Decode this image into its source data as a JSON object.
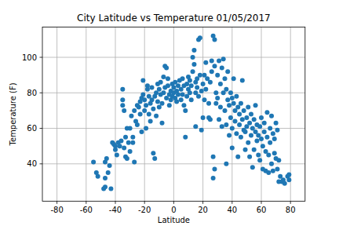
{
  "chart_data": {
    "type": "scatter",
    "title": "City Latitude vs Temperature 01/05/2017",
    "x_label": "Latitude",
    "y_label": "Temperature (F)",
    "color": "#1f77b4",
    "marker": "circle",
    "grid": true,
    "xlim": [
      -90,
      90
    ],
    "ylim": [
      19,
      117
    ],
    "xticks": [
      -80,
      -60,
      -40,
      -20,
      0,
      20,
      40,
      60,
      80
    ],
    "yticks": [
      40,
      60,
      80,
      100
    ],
    "x": [
      -55,
      -53,
      -52,
      -48,
      -47,
      -47,
      -47,
      -46,
      -45,
      -44,
      -43,
      -42,
      -41,
      -40,
      -40,
      -39,
      -38,
      -37,
      -36,
      -35,
      -35,
      -35,
      -34,
      -34,
      -33,
      -33,
      -32,
      -32,
      -31,
      -30,
      -30,
      -29,
      -28,
      -28,
      -27,
      -27,
      -26,
      -25,
      -25,
      -24,
      -23,
      -23,
      -22,
      -22,
      -21,
      -21,
      -20,
      -20,
      -19,
      -19,
      -18,
      -18,
      -17,
      -17,
      -16,
      -16,
      -15,
      -15,
      -14,
      -14,
      -13,
      -13,
      -12,
      -12,
      -11,
      -11,
      -10,
      -10,
      -9,
      -9,
      -8,
      -8,
      -7,
      -7,
      -6,
      -6,
      -5,
      -5,
      -4,
      -4,
      -3,
      -3,
      -2,
      -2,
      -1,
      -1,
      0,
      0,
      1,
      1,
      2,
      2,
      3,
      3,
      4,
      5,
      5,
      6,
      6,
      7,
      7,
      8,
      8,
      9,
      9,
      10,
      10,
      11,
      11,
      12,
      12,
      13,
      13,
      14,
      14,
      15,
      15,
      15,
      16,
      16,
      17,
      17,
      18,
      18,
      19,
      19,
      20,
      20,
      21,
      21,
      22,
      22,
      23,
      24,
      24,
      25,
      25,
      26,
      26,
      27,
      27,
      27,
      28,
      28,
      28,
      29,
      29,
      30,
      30,
      31,
      31,
      32,
      32,
      33,
      33,
      34,
      34,
      35,
      35,
      36,
      36,
      36,
      37,
      37,
      38,
      38,
      39,
      39,
      40,
      40,
      40,
      41,
      41,
      42,
      42,
      43,
      43,
      44,
      44,
      45,
      45,
      46,
      46,
      47,
      47,
      48,
      48,
      49,
      49,
      50,
      50,
      51,
      51,
      52,
      52,
      53,
      53,
      54,
      54,
      55,
      55,
      56,
      56,
      57,
      57,
      58,
      58,
      59,
      59,
      60,
      60,
      61,
      61,
      62,
      62,
      63,
      63,
      64,
      64,
      65,
      65,
      66,
      66,
      67,
      67,
      68,
      68,
      69,
      69,
      70,
      70,
      71,
      71,
      72,
      72,
      73,
      74,
      75,
      76,
      78,
      79,
      79
    ],
    "values": [
      41,
      35,
      33,
      26,
      27,
      32,
      41,
      43,
      35,
      39,
      26,
      52,
      51,
      48,
      50,
      45,
      52,
      50,
      53,
      82,
      76,
      73,
      70,
      49,
      55,
      44,
      60,
      43,
      52,
      60,
      47,
      67,
      55,
      52,
      70,
      41,
      64,
      62,
      73,
      72,
      75,
      68,
      77,
      58,
      87,
      79,
      76,
      70,
      60,
      73,
      84,
      82,
      78,
      68,
      74,
      64,
      83,
      76,
      71,
      46,
      43,
      78,
      80,
      67,
      85,
      75,
      82,
      72,
      79,
      86,
      74,
      63,
      89,
      80,
      95,
      83,
      94,
      77,
      84,
      88,
      79,
      73,
      81,
      76,
      85,
      78,
      80,
      83,
      77,
      86,
      81,
      75,
      79,
      84,
      87,
      82,
      76,
      88,
      79,
      73,
      84,
      70,
      55,
      85,
      78,
      82,
      89,
      87,
      80,
      84,
      76,
      100,
      92,
      104,
      96,
      86,
      80,
      61,
      88,
      83,
      110,
      78,
      111,
      90,
      81,
      59,
      85,
      66,
      90,
      76,
      82,
      97,
      88,
      74,
      66,
      86,
      65,
      92,
      98,
      112,
      44,
      32,
      95,
      37,
      110,
      80,
      74,
      90,
      77,
      98,
      65,
      85,
      72,
      94,
      61,
      99,
      80,
      88,
      70,
      82,
      62,
      40,
      76,
      92,
      73,
      56,
      80,
      66,
      77,
      60,
      49,
      74,
      88,
      70,
      64,
      78,
      57,
      72,
      44,
      68,
      62,
      74,
      55,
      65,
      87,
      70,
      59,
      58,
      48,
      66,
      61,
      72,
      52,
      63,
      44,
      68,
      56,
      60,
      38,
      65,
      48,
      58,
      73,
      62,
      53,
      56,
      45,
      61,
      42,
      54,
      66,
      50,
      37,
      58,
      63,
      47,
      36,
      55,
      69,
      45,
      35,
      52,
      60,
      40,
      67,
      57,
      36,
      46,
      54,
      43,
      63,
      37,
      59,
      42,
      30,
      33,
      30,
      31,
      29,
      33,
      31,
      34
    ]
  }
}
